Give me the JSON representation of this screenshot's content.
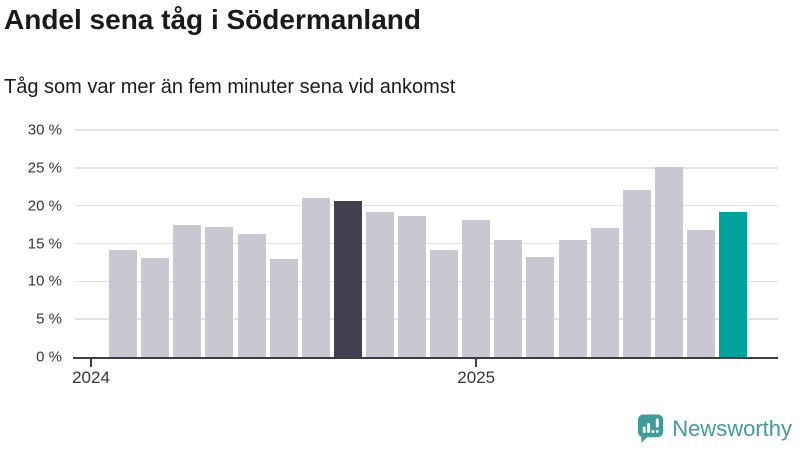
{
  "title": "Andel sena tåg i Södermanland",
  "subtitle": "Tåg som var mer än fem minuter sena vid ankomst",
  "footer": {
    "brand": "Newsworthy"
  },
  "colors": {
    "bar_default": "#c9c8d2",
    "bar_dark": "#42404e",
    "bar_accent": "#00a29b",
    "gridline": "#e3e2e7",
    "axis": "#3e3d47",
    "tick_label": "#36353f",
    "title_text": "#1a1a1a",
    "brand_teal": "#3f9c98"
  },
  "chart_data": {
    "type": "bar",
    "title": "Andel sena tåg i Södermanland",
    "subtitle": "Tåg som var mer än fem minuter sena vid ankomst",
    "unit": "percent share of late trains (>5 min at arrival)",
    "x": [
      "2024-02",
      "2024-03",
      "2024-04",
      "2024-05",
      "2024-06",
      "2024-07",
      "2024-08",
      "2024-09",
      "2024-10",
      "2024-11",
      "2024-12",
      "2025-01",
      "2025-02",
      "2025-03",
      "2025-04",
      "2025-05",
      "2025-06",
      "2025-07",
      "2025-08",
      "2025-09"
    ],
    "values": [
      14.2,
      13.1,
      17.5,
      17.2,
      16.3,
      13.0,
      21.0,
      20.6,
      19.2,
      18.6,
      14.2,
      18.1,
      15.4,
      13.2,
      15.4,
      17.1,
      22.1,
      25.1,
      16.8,
      19.2
    ],
    "dark_bar_index": 7,
    "accent_bar_index": 19,
    "ylim": [
      0,
      30
    ],
    "yticks": [
      {
        "value": 0,
        "label": "0 %"
      },
      {
        "value": 5,
        "label": "5 %"
      },
      {
        "value": 10,
        "label": "10 %"
      },
      {
        "value": 15,
        "label": "15 %"
      },
      {
        "value": 20,
        "label": "20 %"
      },
      {
        "value": 25,
        "label": "25 %"
      },
      {
        "value": 30,
        "label": "30 %"
      }
    ],
    "xticks": [
      {
        "label": "2024",
        "month_offset": 0
      },
      {
        "label": "2025",
        "month_offset": 12
      }
    ],
    "grid": "horizontal",
    "legend": "none"
  }
}
